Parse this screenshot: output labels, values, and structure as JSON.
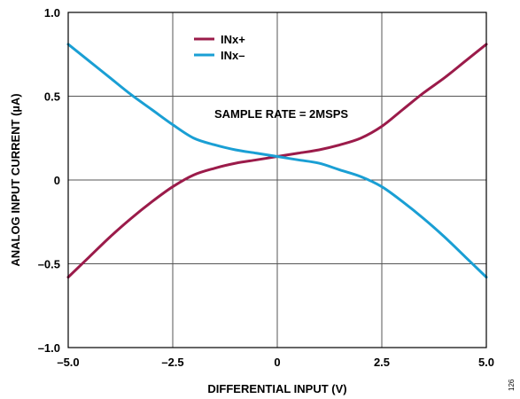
{
  "chart_data": {
    "type": "line",
    "xlabel": "DIFFERENTIAL INPUT (V)",
    "ylabel": "ANALOG INPUT CURRENT (µA)",
    "xlim": [
      -5.0,
      5.0
    ],
    "ylim": [
      -1.0,
      1.0
    ],
    "x_ticks": [
      -5.0,
      -2.5,
      0,
      2.5,
      5.0
    ],
    "x_tick_labels": [
      "–5.0",
      "–2.5",
      "0",
      "2.5",
      "5.0"
    ],
    "y_ticks": [
      -1.0,
      -0.5,
      0,
      0.5,
      1.0
    ],
    "y_tick_labels": [
      "–1.0",
      "–0.5",
      "0",
      "0.5",
      "1.0"
    ],
    "grid": true,
    "legend_position": "top-left",
    "annotation": "SAMPLE RATE = 2MSPS",
    "figure_number": "126",
    "x": [
      -5.0,
      -4.5,
      -4.0,
      -3.5,
      -3.0,
      -2.5,
      -2.0,
      -1.5,
      -1.0,
      -0.5,
      0.0,
      0.5,
      1.0,
      1.5,
      2.0,
      2.5,
      3.0,
      3.5,
      4.0,
      4.5,
      5.0
    ],
    "series": [
      {
        "name": "INx+",
        "color": "#9b1b4a",
        "values": [
          -0.58,
          -0.46,
          -0.34,
          -0.23,
          -0.13,
          -0.04,
          0.03,
          0.07,
          0.1,
          0.12,
          0.14,
          0.16,
          0.18,
          0.21,
          0.25,
          0.32,
          0.42,
          0.52,
          0.61,
          0.71,
          0.81
        ]
      },
      {
        "name": "INx–",
        "color": "#1a9fd4",
        "values": [
          0.81,
          0.71,
          0.61,
          0.51,
          0.42,
          0.33,
          0.25,
          0.21,
          0.18,
          0.16,
          0.14,
          0.12,
          0.1,
          0.06,
          0.02,
          -0.04,
          -0.13,
          -0.23,
          -0.34,
          -0.46,
          -0.58
        ]
      }
    ]
  }
}
